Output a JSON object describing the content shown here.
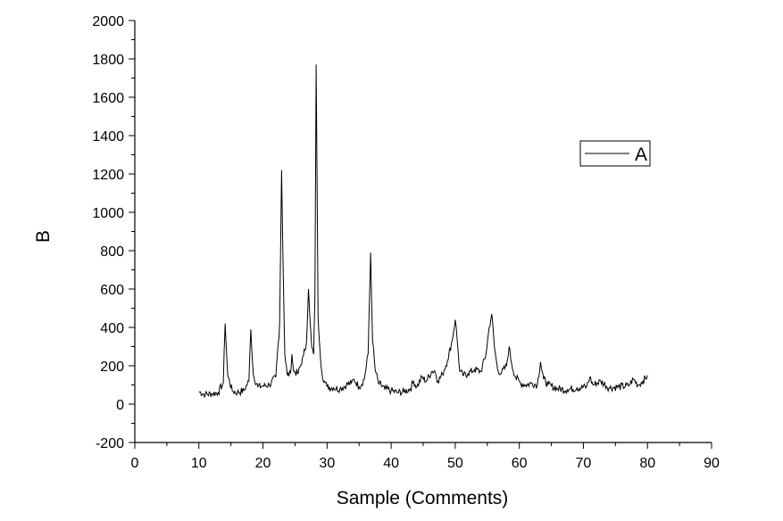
{
  "chart_data": {
    "type": "line",
    "title": "",
    "xlabel": "Sample (Comments)",
    "ylabel": "B",
    "xlim": [
      0,
      90
    ],
    "ylim": [
      -200,
      2000
    ],
    "xticks": [
      0,
      10,
      20,
      30,
      40,
      50,
      60,
      70,
      80,
      90
    ],
    "yticks": [
      -200,
      0,
      200,
      400,
      600,
      800,
      1000,
      1200,
      1400,
      1600,
      1800,
      2000
    ],
    "grid": false,
    "legend_position": "right",
    "line_color": "#000000",
    "series": [
      {
        "name": "A",
        "x": [
          10,
          11,
          12,
          13,
          13.8,
          14.1,
          14.5,
          15.2,
          16,
          17,
          17.8,
          18.1,
          18.5,
          19.2,
          20,
          21,
          22,
          22.6,
          22.9,
          23.1,
          23.4,
          23.8,
          24.3,
          24.5,
          24.8,
          25.5,
          26.3,
          26.8,
          27.1,
          27.3,
          27.6,
          27.9,
          28.1,
          28.3,
          28.6,
          28.9,
          29.2,
          29.6,
          30,
          31,
          32,
          33,
          33.8,
          34.2,
          35,
          35.8,
          36.4,
          36.8,
          37.1,
          37.5,
          38,
          39,
          40,
          41,
          42,
          43,
          43.5,
          44,
          44.8,
          45.5,
          46.3,
          46.8,
          47.3,
          48,
          48.8,
          49.5,
          50,
          50.3,
          50.7,
          51.3,
          52,
          53,
          54,
          54.8,
          55.3,
          55.7,
          56.1,
          56.6,
          57.2,
          58,
          58.4,
          58.8,
          59.4,
          60.2,
          61,
          62,
          62.8,
          63.3,
          63.8,
          64.5,
          66,
          67.5,
          69,
          70.5,
          71,
          71.5,
          72.7,
          74,
          75.5,
          77,
          77.8,
          78.5,
          79.3,
          80
        ],
        "values": [
          65,
          50,
          55,
          60,
          110,
          420,
          150,
          70,
          60,
          70,
          120,
          390,
          150,
          90,
          95,
          100,
          140,
          420,
          1220,
          800,
          260,
          150,
          160,
          260,
          170,
          160,
          250,
          330,
          600,
          460,
          300,
          260,
          550,
          1770,
          450,
          280,
          160,
          120,
          90,
          85,
          80,
          100,
          110,
          130,
          90,
          130,
          260,
          790,
          330,
          180,
          110,
          80,
          70,
          60,
          65,
          80,
          120,
          90,
          140,
          120,
          170,
          175,
          120,
          155,
          230,
          330,
          440,
          340,
          170,
          150,
          160,
          180,
          170,
          260,
          400,
          470,
          300,
          180,
          160,
          200,
          300,
          210,
          140,
          110,
          100,
          110,
          100,
          220,
          130,
          100,
          80,
          75,
          85,
          90,
          140,
          100,
          120,
          85,
          90,
          95,
          130,
          100,
          120,
          150
        ]
      }
    ]
  }
}
